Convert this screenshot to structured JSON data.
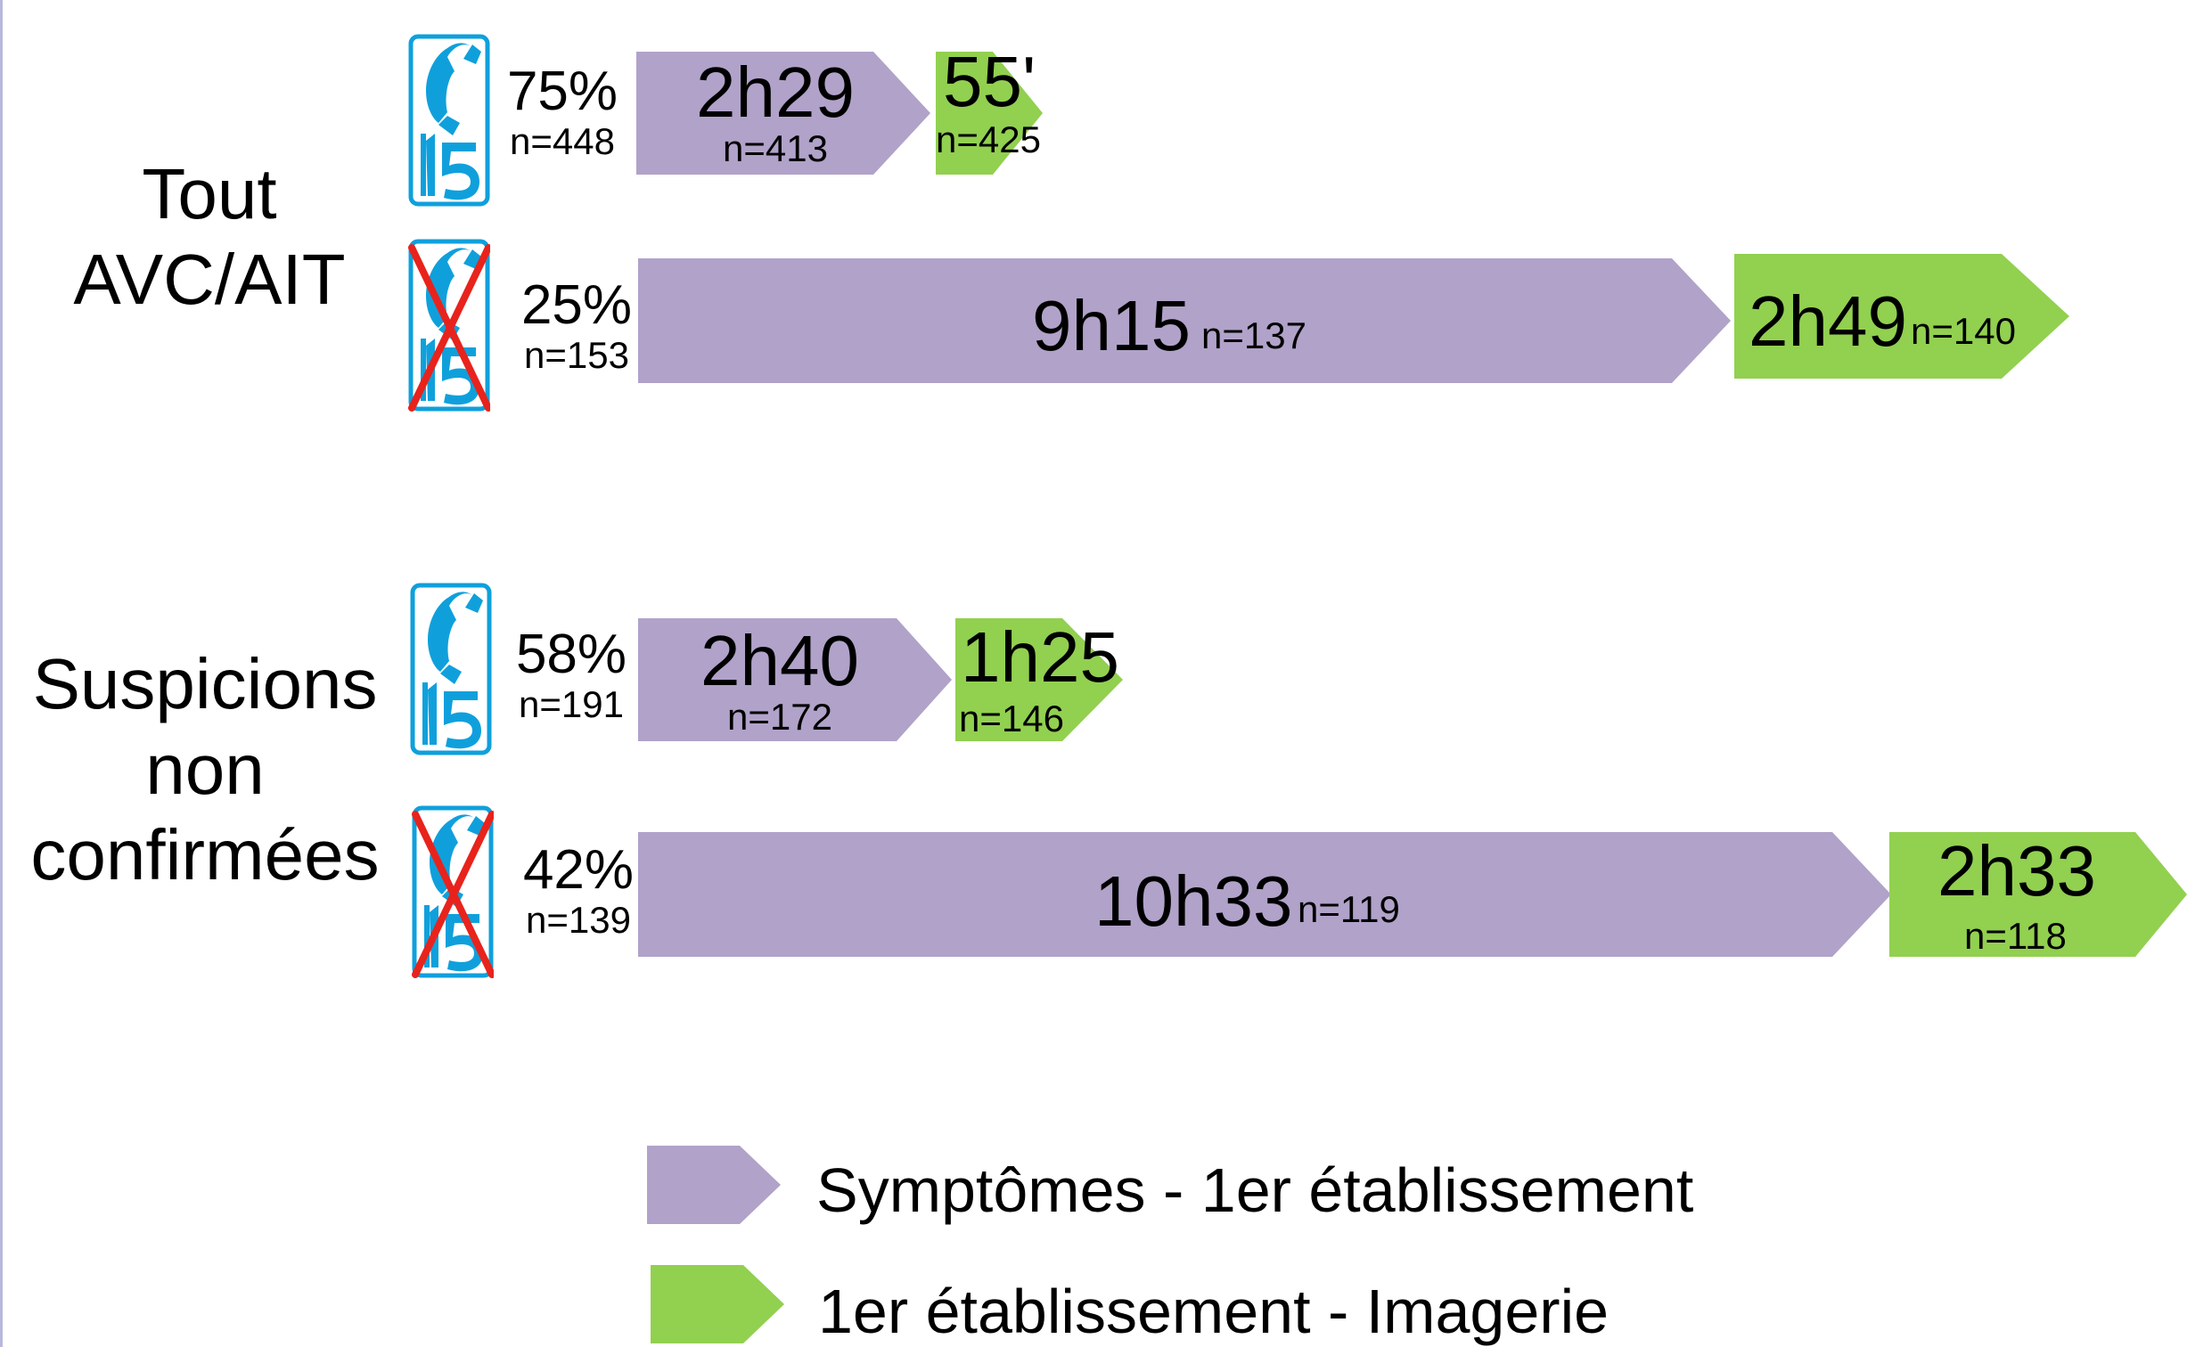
{
  "colors": {
    "purple": "#b1a2c9",
    "green": "#92d050",
    "phone_blue": "#0fa0dc",
    "cross_red": "#e8231c"
  },
  "groups": [
    {
      "label_lines": [
        "Tout",
        "AVC/AIT"
      ],
      "rows": [
        {
          "phone_icon": "phone-15-icon",
          "crossed": false,
          "pct": "75%",
          "n": "n=448",
          "seg1": {
            "time": "2h29",
            "n": "n=413"
          },
          "seg2": {
            "time": "55'",
            "n": "n=425"
          }
        },
        {
          "phone_icon": "phone-15-crossed-icon",
          "crossed": true,
          "pct": "25%",
          "n": "n=153",
          "seg1": {
            "time": "9h15",
            "n": "n=137"
          },
          "seg2": {
            "time": "2h49",
            "n": "n=140"
          }
        }
      ]
    },
    {
      "label_lines": [
        "Suspicions",
        "non",
        "confirmées"
      ],
      "rows": [
        {
          "phone_icon": "phone-15-icon",
          "crossed": false,
          "pct": "58%",
          "n": "n=191",
          "seg1": {
            "time": "2h40",
            "n": "n=172"
          },
          "seg2": {
            "time": "1h25",
            "n": "n=146"
          }
        },
        {
          "phone_icon": "phone-15-crossed-icon",
          "crossed": true,
          "pct": "42%",
          "n": "n=139",
          "seg1": {
            "time": "10h33",
            "n": "n=119"
          },
          "seg2": {
            "time": "2h33",
            "n": "n=118"
          }
        }
      ]
    }
  ],
  "legend": [
    {
      "label": "Symptômes - 1er établissement",
      "color": "#b1a2c9"
    },
    {
      "label": "1er établissement - Imagerie",
      "color": "#92d050"
    }
  ]
}
